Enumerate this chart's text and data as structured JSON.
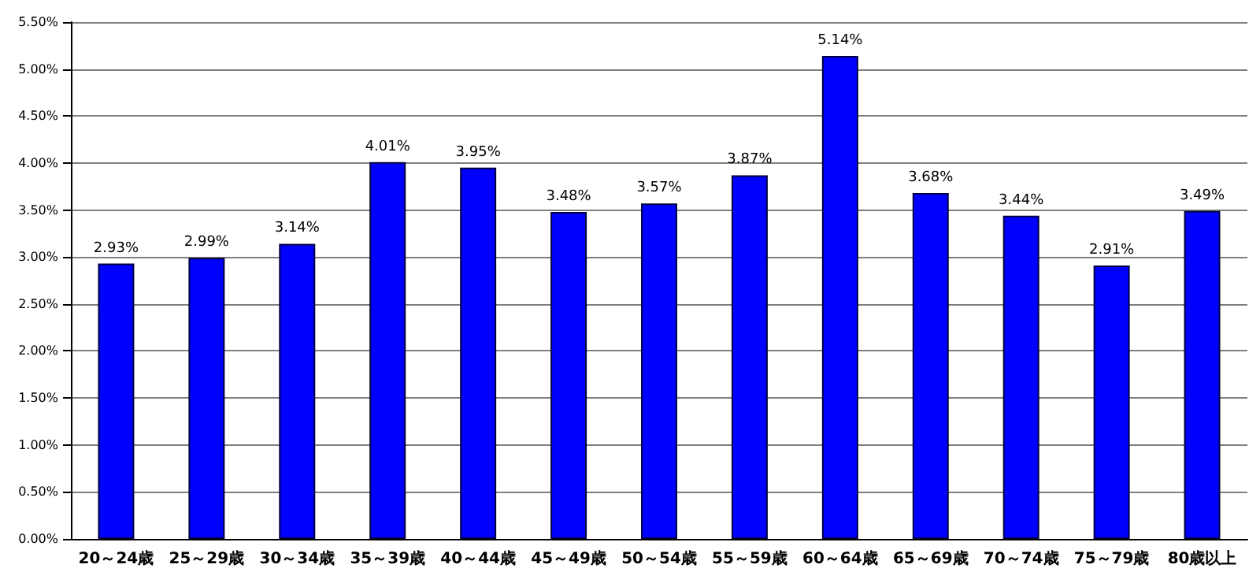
{
  "chart_data": {
    "type": "bar",
    "categories": [
      "20～24歳",
      "25～29歳",
      "30～34歳",
      "35～39歳",
      "40～44歳",
      "45～49歳",
      "50～54歳",
      "55～59歳",
      "60～64歳",
      "65～69歳",
      "70～74歳",
      "75～79歳",
      "80歳以上"
    ],
    "values": [
      2.93,
      2.99,
      3.14,
      4.01,
      3.95,
      3.48,
      3.57,
      3.87,
      5.14,
      3.68,
      3.44,
      2.91,
      3.49
    ],
    "value_labels": [
      "2.93%",
      "2.99%",
      "3.14%",
      "4.01%",
      "3.95%",
      "3.48%",
      "3.57%",
      "3.87%",
      "5.14%",
      "3.68%",
      "3.44%",
      "2.91%",
      "3.49%"
    ],
    "color": "#0000ff",
    "ylim": [
      0,
      5.5
    ],
    "yticks": [
      {
        "value": 0,
        "label": "0.00%"
      },
      {
        "value": 0.5,
        "label": "0.50%"
      },
      {
        "value": 1,
        "label": "1.00%"
      },
      {
        "value": 1.5,
        "label": "1.50%"
      },
      {
        "value": 2,
        "label": "2.00%"
      },
      {
        "value": 2.5,
        "label": "2.50%"
      },
      {
        "value": 3,
        "label": "3.00%"
      },
      {
        "value": 3.5,
        "label": "3.50%"
      },
      {
        "value": 4,
        "label": "4.00%"
      },
      {
        "value": 4.5,
        "label": "4.50%"
      },
      {
        "value": 5,
        "label": "5.00%"
      },
      {
        "value": 5.5,
        "label": "5.50%"
      }
    ],
    "grid": "y"
  }
}
